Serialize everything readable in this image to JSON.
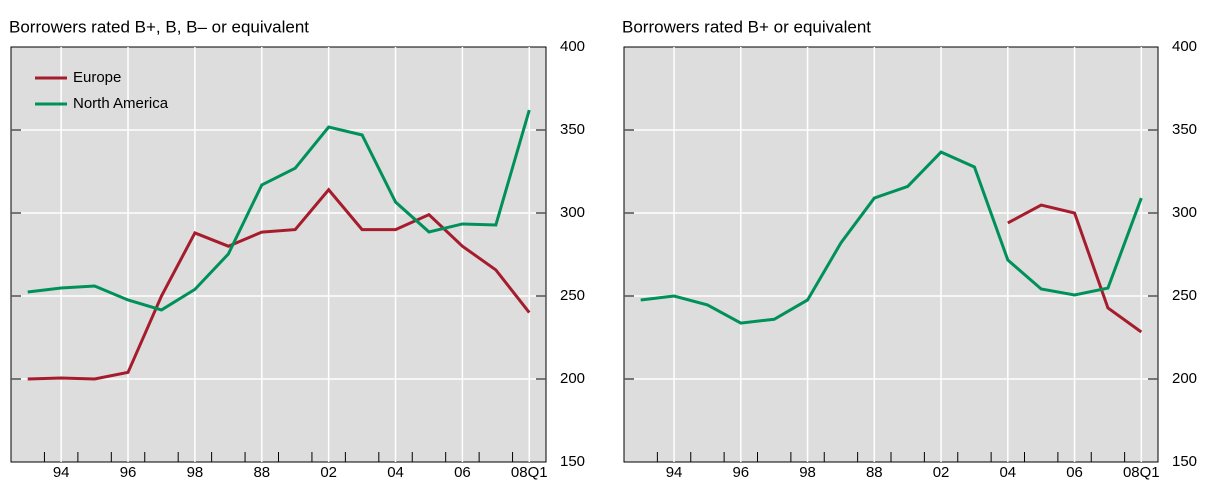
{
  "chart_data": [
    {
      "type": "line",
      "title": "Borrowers rated B+, B, B– or equivalent",
      "categories": [
        null,
        "94",
        null,
        "96",
        null,
        "98",
        null,
        "88",
        null,
        "02",
        null,
        "04",
        null,
        "06",
        null,
        "08Q1"
      ],
      "series": [
        {
          "name": "Europe",
          "color": "#a51d2d",
          "values": [
            200,
            200.6,
            200,
            204,
            250,
            288,
            280,
            288.5,
            290,
            314,
            290,
            290,
            299,
            280,
            265.7,
            240
          ]
        },
        {
          "name": "North America",
          "color": "#00915a",
          "values": [
            252.4,
            254.8,
            256,
            247.6,
            241.6,
            254,
            275.3,
            316.9,
            327,
            351.8,
            347,
            306.6,
            288.6,
            293.4,
            292.8,
            362
          ]
        }
      ],
      "ylim": [
        150,
        400
      ],
      "yticks": [
        150,
        200,
        250,
        300,
        350,
        400
      ],
      "grid": true,
      "legend": "upper left"
    },
    {
      "type": "line",
      "title": "Borrowers rated B+ or equivalent",
      "categories": [
        null,
        "94",
        null,
        "96",
        null,
        "98",
        null,
        "88",
        null,
        "02",
        null,
        "04",
        null,
        "06",
        null,
        "08Q1"
      ],
      "series": [
        {
          "color": "#a51d2d",
          "values": [
            null,
            null,
            null,
            null,
            null,
            null,
            null,
            null,
            null,
            null,
            null,
            294,
            304.8,
            300,
            242.8,
            228.3
          ]
        },
        {
          "color": "#00915a",
          "values": [
            247.6,
            250,
            244.6,
            233.7,
            236,
            247.6,
            282,
            309,
            316,
            336.7,
            327.7,
            271.7,
            254.2,
            250.6,
            254.8,
            309
          ]
        }
      ],
      "ylim": [
        150,
        400
      ],
      "yticks": [
        150,
        200,
        250,
        300,
        350,
        400
      ],
      "grid": true
    }
  ]
}
